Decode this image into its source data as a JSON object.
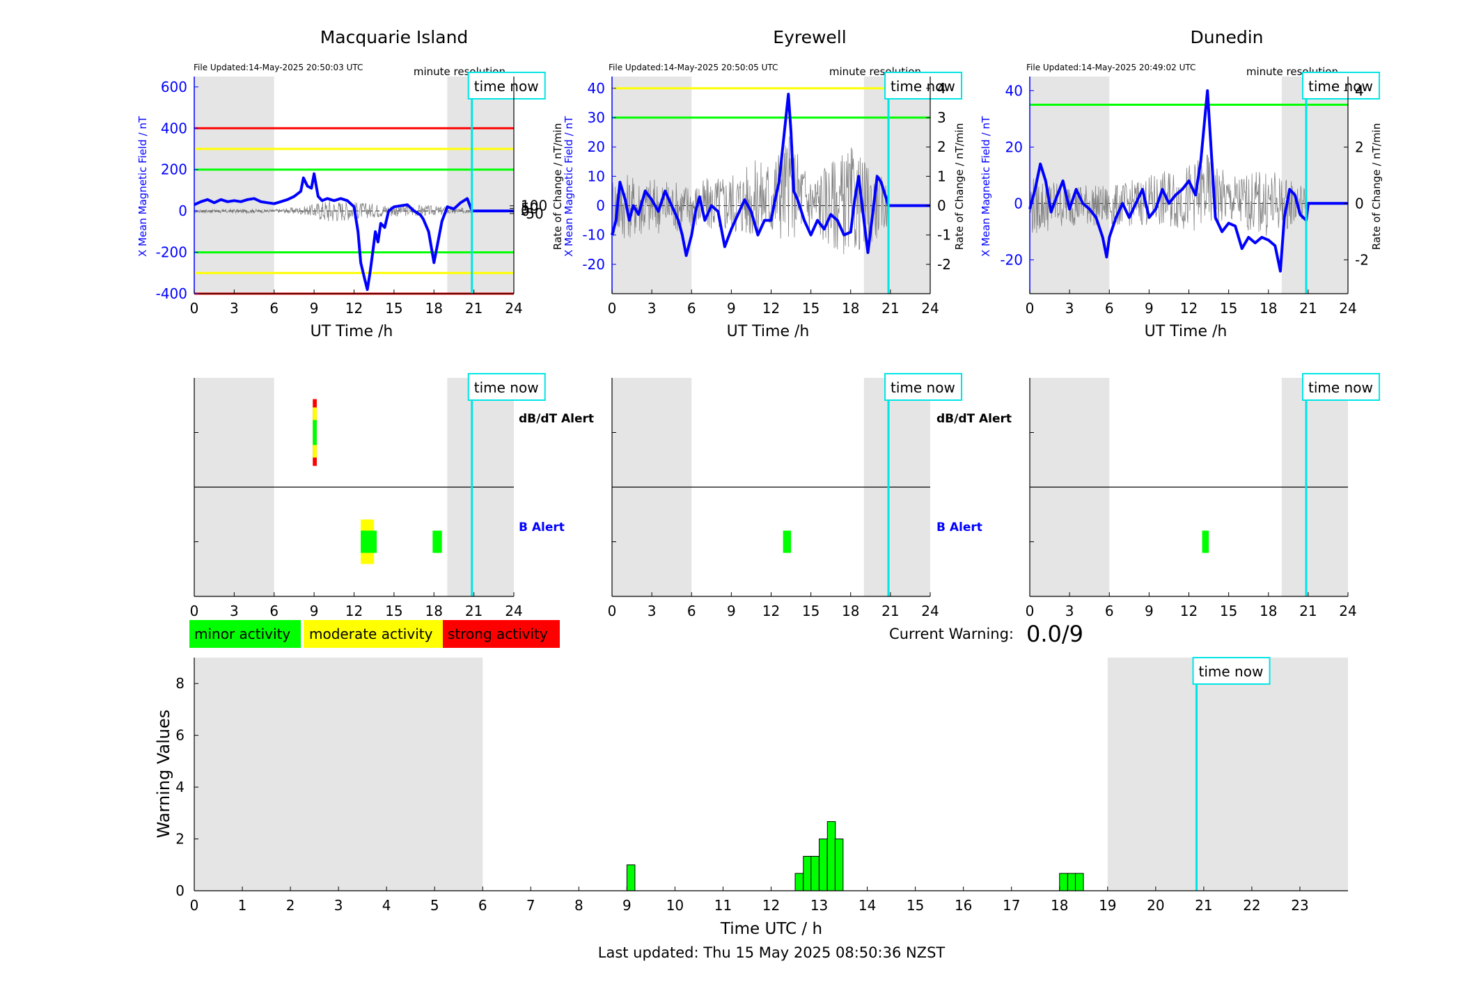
{
  "colors": {
    "shade": "#e5e5e5",
    "trace": "#0000ff",
    "cyan": "#00e5e5",
    "red": "#ff0000",
    "yellow": "#ffff00",
    "green": "#00ff00",
    "noise": "#808080"
  },
  "chart_data": [
    {
      "type": "line",
      "station": "Macquarie Island",
      "title": "Macquarie Island",
      "file_updated": "File Updated:14-May-2025 20:50:03 UTC",
      "resolution": "minute resolution",
      "xlabel": "UT Time /h",
      "ylabel": "X Mean Magnetic Field / nT",
      "y2label": "",
      "xlim": [
        0,
        24
      ],
      "ylim": [
        -400,
        650
      ],
      "xticks": [
        0,
        3,
        6,
        9,
        12,
        15,
        18,
        21,
        24
      ],
      "yticks": [
        -400,
        -200,
        0,
        200,
        400,
        600
      ],
      "y2ticks": [
        -50,
        0,
        50,
        100
      ],
      "y2scale": 4,
      "night_shading": [
        [
          0,
          6
        ],
        [
          19,
          24
        ]
      ],
      "time_now": 20.85,
      "time_now_label": "time now",
      "thresholds": [
        {
          "value": 400,
          "color": "red"
        },
        {
          "value": 300,
          "color": "yellow"
        },
        {
          "value": 200,
          "color": "green"
        },
        {
          "value": -200,
          "color": "green"
        },
        {
          "value": -300,
          "color": "yellow"
        },
        {
          "value": -400,
          "color": "red"
        }
      ],
      "series": [
        {
          "x": [
            0,
            0.5,
            1,
            1.5,
            2,
            2.5,
            3,
            3.5,
            4,
            4.5,
            5,
            5.5,
            6,
            6.5,
            7,
            7.5,
            8,
            8.2,
            8.5,
            8.8,
            9,
            9.3,
            9.6,
            10,
            10.5,
            11,
            11.5,
            12,
            12.3,
            12.5,
            12.8,
            13,
            13.2,
            13.4,
            13.6,
            13.8,
            14,
            14.3,
            14.6,
            15,
            15.5,
            16,
            16.5,
            17,
            17.2,
            17.6,
            18,
            18.3,
            18.6,
            19,
            19.5,
            20,
            20.5,
            20.85,
            21,
            24
          ],
          "y": [
            30,
            45,
            55,
            40,
            55,
            45,
            50,
            45,
            55,
            60,
            45,
            40,
            35,
            45,
            55,
            70,
            95,
            160,
            120,
            110,
            180,
            70,
            50,
            60,
            50,
            60,
            50,
            20,
            -100,
            -250,
            -330,
            -380,
            -300,
            -200,
            -100,
            -150,
            -60,
            -80,
            0,
            20,
            25,
            30,
            0,
            -20,
            -40,
            -100,
            -250,
            -150,
            -50,
            20,
            10,
            40,
            60,
            0,
            0,
            0
          ]
        }
      ],
      "rate_band": [
        [
          0,
          -10
        ],
        [
          3,
          -12
        ],
        [
          6,
          -8
        ],
        [
          8.5,
          -20
        ],
        [
          10,
          -60
        ],
        [
          12,
          -40
        ],
        [
          14,
          -30
        ],
        [
          17,
          -25
        ],
        [
          19,
          -20
        ],
        [
          20.85,
          -10
        ]
      ],
      "rate_band_max": [
        [
          0,
          8
        ],
        [
          3,
          10
        ],
        [
          6,
          8
        ],
        [
          8.5,
          25
        ],
        [
          10,
          60
        ],
        [
          12,
          45
        ],
        [
          14,
          35
        ],
        [
          17,
          30
        ],
        [
          19,
          20
        ],
        [
          20.85,
          10
        ]
      ]
    },
    {
      "type": "line",
      "station": "Eyrewell",
      "title": "Eyrewell",
      "file_updated": "File Updated:14-May-2025 20:50:05 UTC",
      "resolution": "minute resolution",
      "xlabel": "UT Time /h",
      "ylabel": "X Mean Magnetic Field / nT",
      "y2label": "Rate of Change / nT/min",
      "xlim": [
        0,
        24
      ],
      "ylim": [
        -30,
        44
      ],
      "xticks": [
        0,
        3,
        6,
        9,
        12,
        15,
        18,
        21,
        24
      ],
      "yticks": [
        -20,
        -10,
        0,
        10,
        20,
        30,
        40
      ],
      "y2ticks": [
        -2,
        -1,
        0,
        1,
        2,
        3,
        4
      ],
      "y2scale": 0.1,
      "night_shading": [
        [
          0,
          6
        ],
        [
          19,
          24
        ]
      ],
      "time_now": 20.85,
      "time_now_label": "time now",
      "thresholds": [
        {
          "value": 40,
          "color": "yellow"
        },
        {
          "value": 30,
          "color": "green"
        }
      ],
      "series": [
        {
          "x": [
            0,
            0.3,
            0.6,
            1,
            1.3,
            1.6,
            2,
            2.5,
            3,
            3.5,
            4,
            4.5,
            5,
            5.3,
            5.6,
            6,
            6.3,
            6.6,
            7,
            7.5,
            8,
            8.5,
            9,
            9.5,
            10,
            10.5,
            11,
            11.5,
            12,
            12.3,
            12.6,
            13,
            13.3,
            13.5,
            13.7,
            14,
            14.5,
            15,
            15.5,
            16,
            16.5,
            17,
            17.5,
            18,
            18.3,
            18.6,
            19,
            19.3,
            19.6,
            20,
            20.3,
            20.85,
            21,
            24
          ],
          "y": [
            -10,
            -5,
            8,
            2,
            -5,
            0,
            -3,
            5,
            2,
            -2,
            5,
            0,
            -5,
            -10,
            -17,
            -10,
            -2,
            3,
            -5,
            0,
            -2,
            -14,
            -8,
            -3,
            2,
            -2,
            -10,
            -5,
            -5,
            2,
            8,
            25,
            38,
            25,
            5,
            2,
            -5,
            -10,
            -5,
            -8,
            -3,
            -5,
            -10,
            -9,
            2,
            10,
            -5,
            -16,
            -5,
            10,
            8,
            0,
            0,
            0
          ]
        }
      ],
      "rate_band": [
        [
          0,
          -12
        ],
        [
          3,
          -10
        ],
        [
          6,
          -8
        ],
        [
          9,
          -10
        ],
        [
          12,
          -12
        ],
        [
          15,
          -10
        ],
        [
          18,
          -18
        ],
        [
          20.85,
          -8
        ]
      ],
      "rate_band_max": [
        [
          0,
          12
        ],
        [
          3,
          10
        ],
        [
          6,
          8
        ],
        [
          9,
          12
        ],
        [
          12,
          18
        ],
        [
          13.3,
          25
        ],
        [
          15,
          12
        ],
        [
          18,
          20
        ],
        [
          20.85,
          8
        ]
      ]
    },
    {
      "type": "line",
      "station": "Dunedin",
      "title": "Dunedin",
      "file_updated": "File Updated:14-May-2025 20:49:02 UTC",
      "resolution": "minute resolution",
      "xlabel": "UT Time /h",
      "ylabel": "X Mean Magnetic Field / nT",
      "y2label": "Rate of Change / nT/min",
      "xlim": [
        0,
        24
      ],
      "ylim": [
        -32,
        45
      ],
      "xticks": [
        0,
        3,
        6,
        9,
        12,
        15,
        18,
        21,
        24
      ],
      "yticks": [
        -20,
        0,
        20,
        40
      ],
      "y2ticks": [
        -2,
        0,
        2,
        4
      ],
      "y2scale": 0.1,
      "night_shading": [
        [
          0,
          6
        ],
        [
          19,
          24
        ]
      ],
      "time_now": 20.85,
      "time_now_label": "time now",
      "thresholds": [
        {
          "value": 35,
          "color": "green"
        }
      ],
      "series": [
        {
          "x": [
            0,
            0.4,
            0.8,
            1.2,
            1.6,
            2,
            2.5,
            3,
            3.5,
            4,
            4.5,
            5,
            5.5,
            5.8,
            6,
            6.5,
            7,
            7.5,
            8,
            8.5,
            9,
            9.5,
            10,
            10.5,
            11,
            11.5,
            12,
            12.5,
            12.9,
            13.2,
            13.4,
            13.6,
            14,
            14.5,
            15,
            15.5,
            16,
            16.5,
            17,
            17.5,
            18,
            18.5,
            18.9,
            19.2,
            19.6,
            20,
            20.4,
            20.85,
            21,
            24
          ],
          "y": [
            -2,
            5,
            14,
            8,
            -3,
            2,
            8,
            -2,
            5,
            0,
            -2,
            -5,
            -12,
            -19,
            -12,
            -5,
            0,
            -5,
            0,
            5,
            -5,
            -2,
            5,
            0,
            3,
            5,
            8,
            3,
            15,
            30,
            40,
            25,
            -5,
            -10,
            -7,
            -8,
            -16,
            -12,
            -14,
            -12,
            -13,
            -15,
            -24,
            -5,
            5,
            3,
            -4,
            -6,
            0,
            0
          ]
        }
      ],
      "rate_band": [
        [
          0,
          -12
        ],
        [
          3,
          -8
        ],
        [
          6,
          -8
        ],
        [
          9,
          -8
        ],
        [
          12,
          -10
        ],
        [
          15,
          -8
        ],
        [
          18,
          -12
        ],
        [
          20.85,
          -6
        ]
      ],
      "rate_band_max": [
        [
          0,
          10
        ],
        [
          3,
          8
        ],
        [
          6,
          6
        ],
        [
          9,
          10
        ],
        [
          12,
          14
        ],
        [
          13.3,
          18
        ],
        [
          15,
          10
        ],
        [
          18,
          12
        ],
        [
          20.85,
          6
        ]
      ]
    },
    {
      "type": "bar",
      "panel": "alerts",
      "station": "Macquarie Island",
      "xlim": [
        0,
        24
      ],
      "xticks": [
        0,
        3,
        6,
        9,
        12,
        15,
        18,
        21,
        24
      ],
      "night_shading": [
        [
          0,
          6
        ],
        [
          19,
          24
        ]
      ],
      "time_now": 20.85,
      "time_now_label": "time now",
      "row_labels": {
        "dbdt": "dB/dT Alert",
        "b": "B Alert"
      },
      "dbdt_alerts": [
        {
          "x0": 8.9,
          "x1": 9.2,
          "level": "strong"
        },
        {
          "x0": 8.9,
          "x1": 9.2,
          "level": "moderate"
        },
        {
          "x0": 8.9,
          "x1": 9.2,
          "level": "minor"
        }
      ],
      "b_alerts": [
        {
          "x0": 12.5,
          "x1": 13.5,
          "level": "moderate"
        },
        {
          "x0": 12.5,
          "x1": 13.7,
          "level": "minor"
        },
        {
          "x0": 17.9,
          "x1": 18.6,
          "level": "minor"
        }
      ]
    },
    {
      "type": "bar",
      "panel": "alerts",
      "station": "Eyrewell",
      "xlim": [
        0,
        24
      ],
      "xticks": [
        0,
        3,
        6,
        9,
        12,
        15,
        18,
        21,
        24
      ],
      "night_shading": [
        [
          0,
          6
        ],
        [
          19,
          24
        ]
      ],
      "time_now": 20.85,
      "time_now_label": "time now",
      "row_labels": {
        "dbdt": "dB/dT Alert",
        "b": "B Alert"
      },
      "dbdt_alerts": [],
      "b_alerts": [
        {
          "x0": 12.9,
          "x1": 13.5,
          "level": "minor"
        }
      ]
    },
    {
      "type": "bar",
      "panel": "alerts",
      "station": "Dunedin",
      "xlim": [
        0,
        24
      ],
      "xticks": [
        0,
        3,
        6,
        9,
        12,
        15,
        18,
        21,
        24
      ],
      "night_shading": [
        [
          0,
          6
        ],
        [
          19,
          24
        ]
      ],
      "time_now": 20.85,
      "time_now_label": "time now",
      "row_labels": {
        "dbdt": "",
        "b": ""
      },
      "dbdt_alerts": [],
      "b_alerts": [
        {
          "x0": 13.0,
          "x1": 13.5,
          "level": "minor"
        }
      ]
    },
    {
      "type": "bar",
      "panel": "warning",
      "xlabel": "Time UTC / h",
      "ylabel": "Warning Values",
      "xlim": [
        0,
        24
      ],
      "ylim": [
        0,
        9
      ],
      "xticks": [
        0,
        1,
        2,
        3,
        4,
        5,
        6,
        7,
        8,
        9,
        10,
        11,
        12,
        13,
        14,
        15,
        16,
        17,
        18,
        19,
        20,
        21,
        22,
        23
      ],
      "yticks": [
        0,
        2,
        4,
        6,
        8
      ],
      "night_shading": [
        [
          0,
          6
        ],
        [
          19,
          24
        ]
      ],
      "time_now": 20.85,
      "time_now_label": "time now",
      "bars": [
        {
          "x": 9.0,
          "value": 1.0
        },
        {
          "x": 12.5,
          "value": 0.67
        },
        {
          "x": 12.67,
          "value": 1.33
        },
        {
          "x": 12.83,
          "value": 1.33
        },
        {
          "x": 13.0,
          "value": 2.0
        },
        {
          "x": 13.17,
          "value": 2.67
        },
        {
          "x": 13.33,
          "value": 2.0
        },
        {
          "x": 18.0,
          "value": 0.67
        },
        {
          "x": 18.17,
          "value": 0.67
        },
        {
          "x": 18.33,
          "value": 0.67
        }
      ],
      "bar_width": 0.167
    }
  ],
  "legend": [
    {
      "label": "minor activity",
      "color": "#00ff00"
    },
    {
      "label": "moderate activity",
      "color": "#ffff00"
    },
    {
      "label": "strong activity",
      "color": "#ff0000"
    }
  ],
  "current_warning": {
    "label": "Current Warning:",
    "value": "0.0/9"
  },
  "footer": "Last updated: Thu 15 May 2025 08:50:36 NZST"
}
